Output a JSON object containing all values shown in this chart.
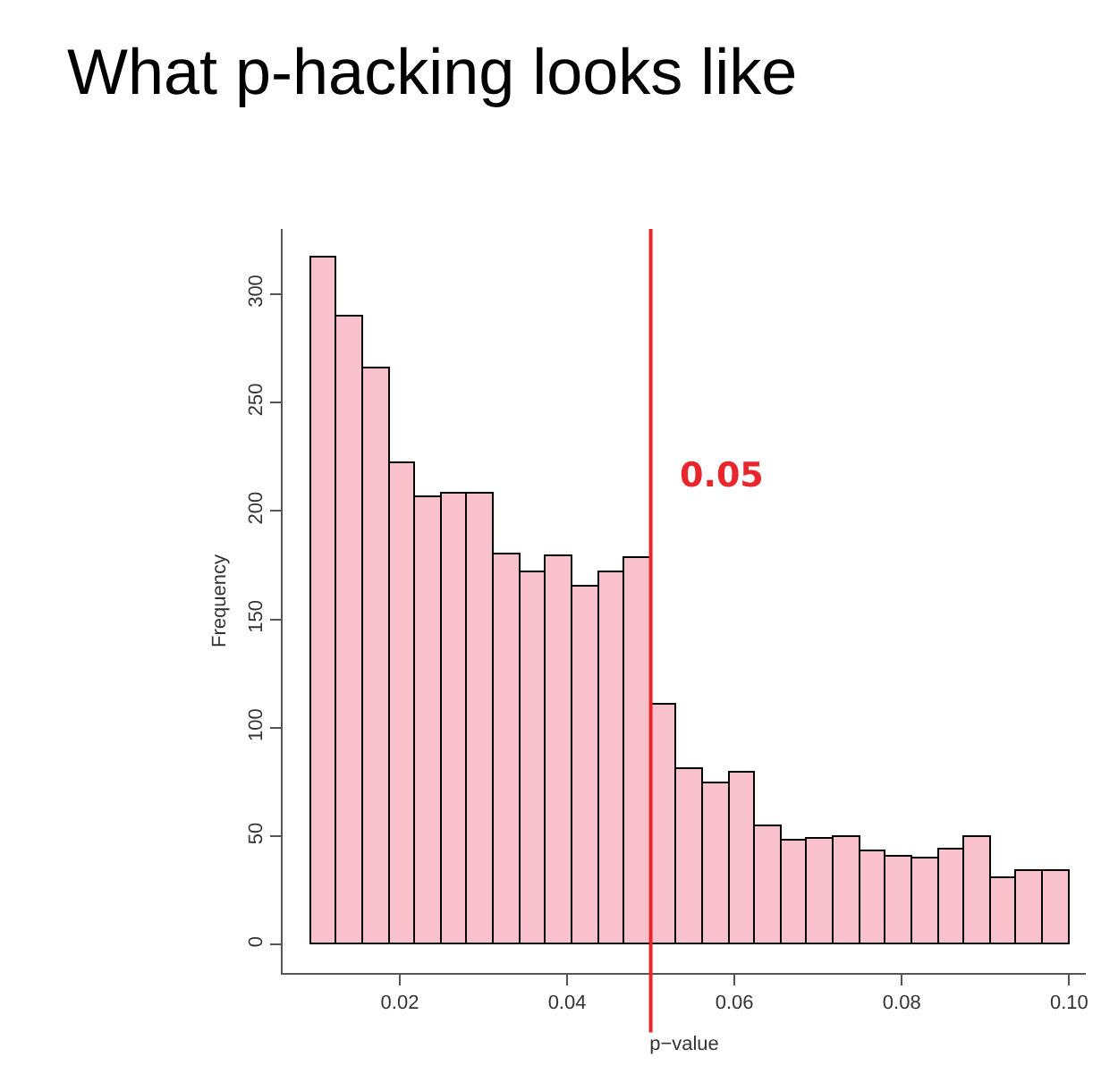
{
  "chart_data": {
    "type": "histogram",
    "title": "What p-hacking looks like",
    "xlabel": "p−value",
    "ylabel": "Frequency",
    "bins": [
      0.009375,
      0.0125,
      0.015625,
      0.01875,
      0.021875,
      0.025,
      0.028125,
      0.03125,
      0.034375,
      0.0375,
      0.040625,
      0.04375,
      0.046875,
      0.05,
      0.053125,
      0.05625,
      0.059375,
      0.0625,
      0.065625,
      0.06875,
      0.071875,
      0.075,
      0.078125,
      0.08125,
      0.084375,
      0.0875,
      0.090625,
      0.09375,
      0.096875,
      0.1
    ],
    "values": [
      317,
      290,
      266,
      222,
      206,
      208,
      208,
      180,
      172,
      179,
      165,
      172,
      178,
      111,
      81,
      74,
      79,
      55,
      48,
      49,
      50,
      43,
      41,
      40,
      44,
      50,
      31,
      34,
      34
    ],
    "color": "#f8c1cc",
    "xlim": [
      0.006,
      0.102
    ],
    "ylim": [
      -13,
      330
    ],
    "xticks": [
      0.02,
      0.04,
      0.06,
      0.08,
      {
        "value": 0.1,
        "label": "0.10"
      }
    ],
    "yticks": [
      0,
      50,
      100,
      150,
      200,
      250,
      300
    ],
    "ref_lines": [
      {
        "axis": "x",
        "value": 0.05,
        "label": "0.05",
        "color": "#e8262c"
      }
    ],
    "grid": false,
    "legend": false
  }
}
